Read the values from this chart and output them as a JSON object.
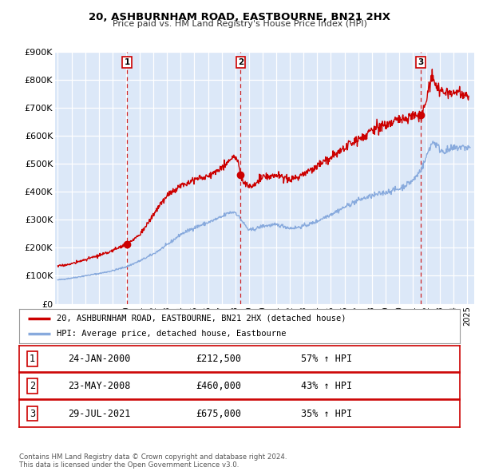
{
  "title": "20, ASHBURNHAM ROAD, EASTBOURNE, BN21 2HX",
  "subtitle": "Price paid vs. HM Land Registry's House Price Index (HPI)",
  "fig_bg_color": "#ffffff",
  "plot_bg_color": "#dce8f8",
  "grid_color": "#ffffff",
  "ylim": [
    0,
    900000
  ],
  "xlim_start": 1994.8,
  "xlim_end": 2025.5,
  "yticks": [
    0,
    100000,
    200000,
    300000,
    400000,
    500000,
    600000,
    700000,
    800000,
    900000
  ],
  "ytick_labels": [
    "£0",
    "£100K",
    "£200K",
    "£300K",
    "£400K",
    "£500K",
    "£600K",
    "£700K",
    "£800K",
    "£900K"
  ],
  "transaction_dates": [
    2000.07,
    2008.39,
    2021.57
  ],
  "transaction_prices": [
    212500,
    460000,
    675000
  ],
  "transaction_labels": [
    "1",
    "2",
    "3"
  ],
  "sale_color": "#cc0000",
  "hpi_color": "#88aadd",
  "legend_sale_label": "20, ASHBURNHAM ROAD, EASTBOURNE, BN21 2HX (detached house)",
  "legend_hpi_label": "HPI: Average price, detached house, Eastbourne",
  "table_rows": [
    {
      "num": "1",
      "date": "24-JAN-2000",
      "price": "£212,500",
      "hpi": "57% ↑ HPI"
    },
    {
      "num": "2",
      "date": "23-MAY-2008",
      "price": "£460,000",
      "hpi": "43% ↑ HPI"
    },
    {
      "num": "3",
      "date": "29-JUL-2021",
      "price": "£675,000",
      "hpi": "35% ↑ HPI"
    }
  ],
  "footer": "Contains HM Land Registry data © Crown copyright and database right 2024.\nThis data is licensed under the Open Government Licence v3.0."
}
